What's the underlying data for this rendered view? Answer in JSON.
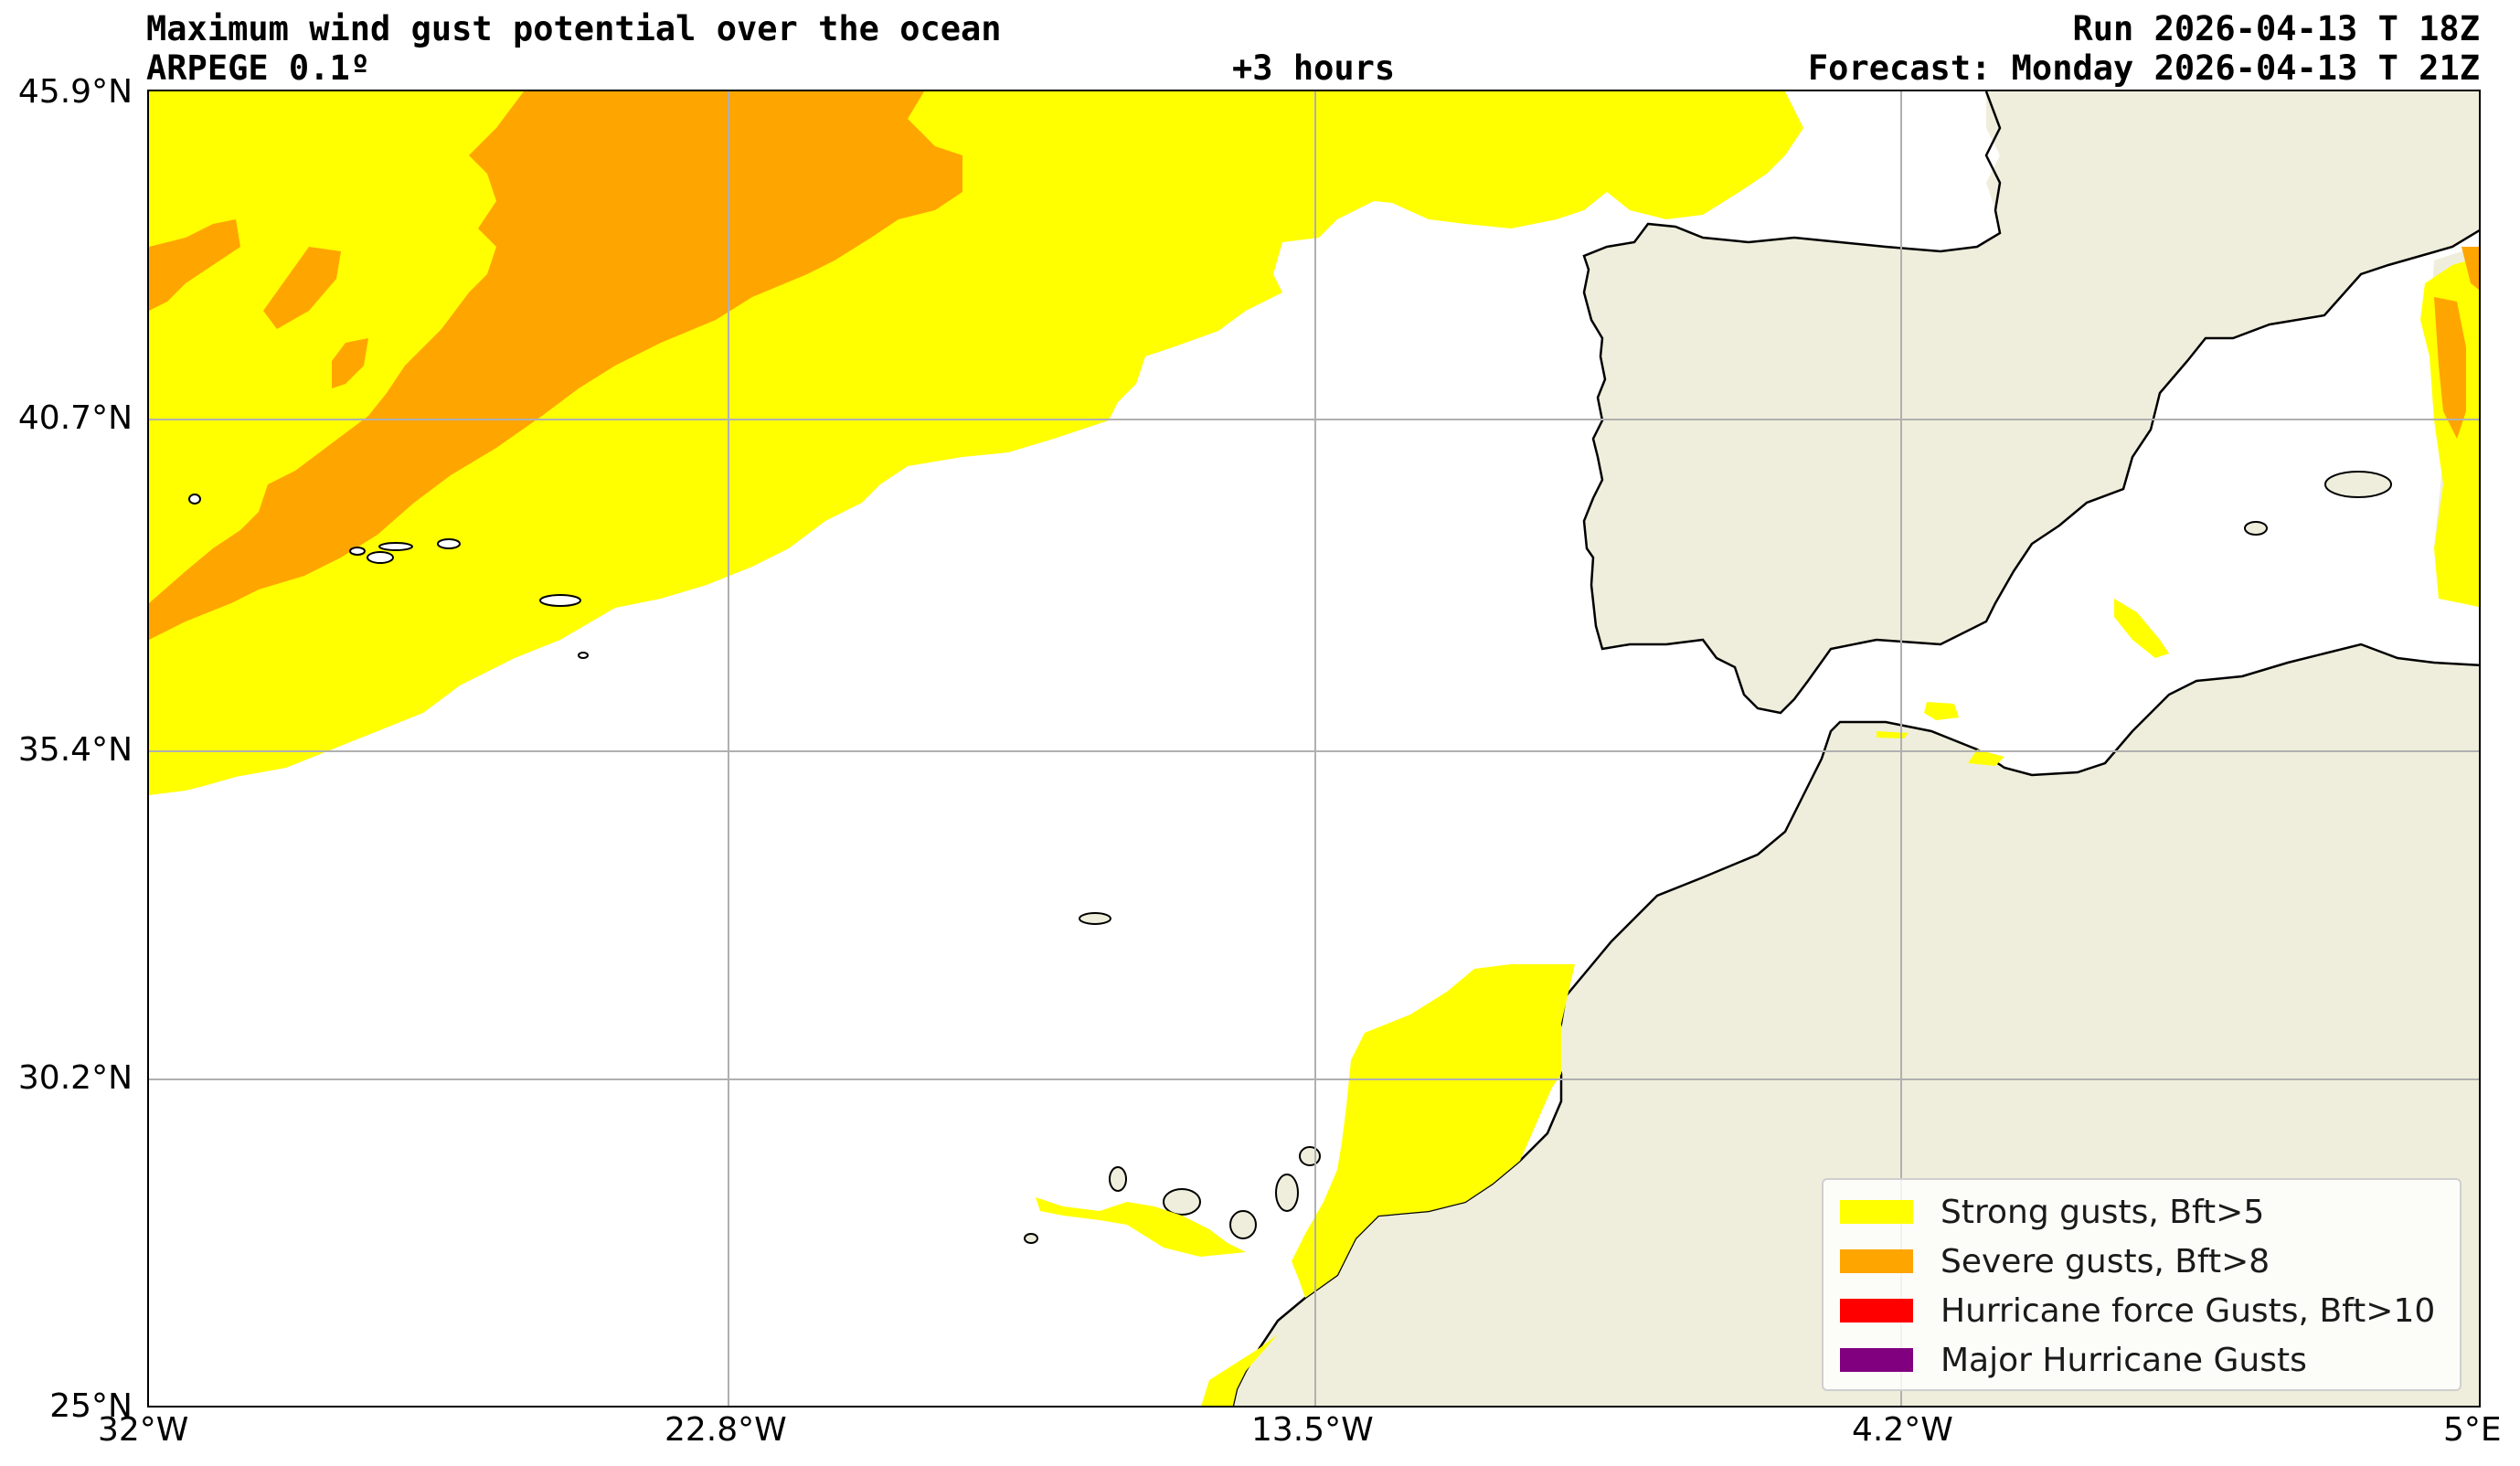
{
  "header": {
    "title": "Maximum wind gust potential over the ocean",
    "model": "ARPEGE 0.1º",
    "lead_time": "+3 hours",
    "run": "Run 2026-04-13 T 18Z",
    "forecast": "Forecast: Monday 2026-04-13 T 21Z"
  },
  "axes": {
    "y_ticks": [
      "45.9°N",
      "40.7°N",
      "35.4°N",
      "30.2°N",
      "25°N"
    ],
    "x_ticks": [
      "32°W",
      "22.8°W",
      "13.5°W",
      "4.2°W",
      "5°E"
    ],
    "lon_range": [
      -32,
      5
    ],
    "lat_range": [
      25,
      45.9
    ],
    "grid": true
  },
  "legend": {
    "placement": "lower-right",
    "items": [
      {
        "label": "Strong gusts, Bft>5",
        "color": "#ffff00"
      },
      {
        "label": "Severe gusts, Bft>8",
        "color": "#ffa500"
      },
      {
        "label": "Hurricane force Gusts, Bft>10",
        "color": "#ff0000"
      },
      {
        "label": "Major Hurricane Gusts",
        "color": "#800080"
      }
    ]
  },
  "colors": {
    "land": "#efeedc",
    "ocean": "#ffffff",
    "strong": "#ffff00",
    "severe": "#ffa500",
    "coastline": "#000000",
    "grid": "#b0b0b0"
  }
}
